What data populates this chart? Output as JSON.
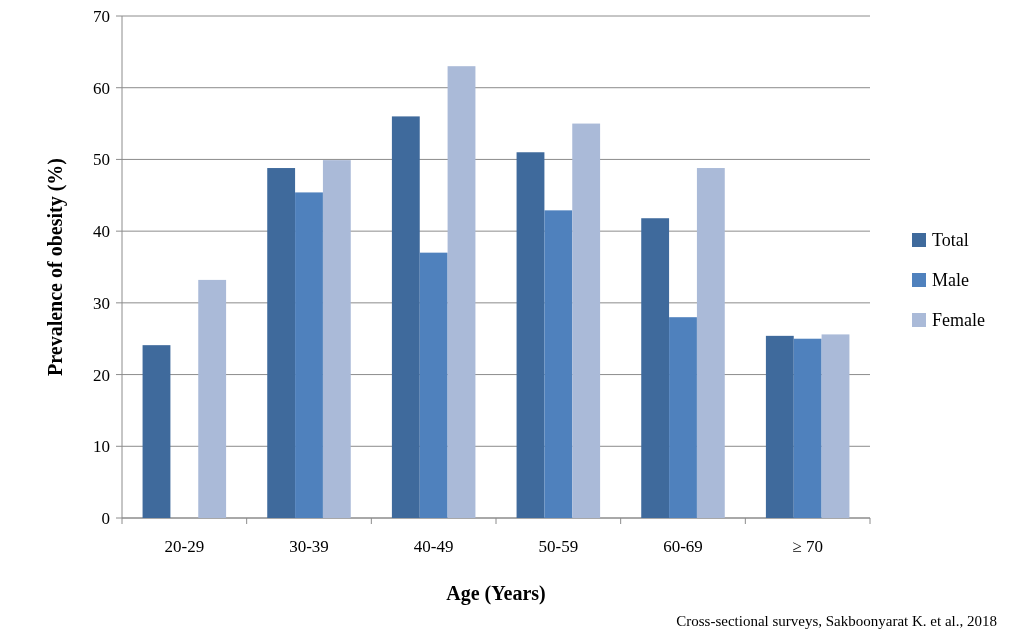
{
  "chart_data": {
    "type": "bar",
    "xlabel": "Age (Years)",
    "ylabel": "Prevalence of obesity (%)",
    "categories": [
      "20-29",
      "30-39",
      "40-49",
      "50-59",
      "60-69",
      "≥ 70"
    ],
    "series": [
      {
        "name": "Total",
        "color": "#3f6a9c",
        "values": [
          24.1,
          48.8,
          56,
          51,
          41.8,
          25.4
        ]
      },
      {
        "name": "Male",
        "color": "#4f81bd",
        "values": [
          null,
          45.4,
          37,
          42.9,
          28,
          25
        ]
      },
      {
        "name": "Female",
        "color": "#aabad8",
        "values": [
          33.2,
          49.9,
          63,
          55,
          48.8,
          25.6
        ]
      }
    ],
    "ylim": [
      0,
      70
    ],
    "yticks": [
      0,
      10,
      20,
      30,
      40,
      50,
      60,
      70
    ],
    "grid": "y",
    "legend": "right",
    "annotations": [
      "Cross-sectional surveys, Sakboonyarat K. et al., 2018"
    ]
  }
}
